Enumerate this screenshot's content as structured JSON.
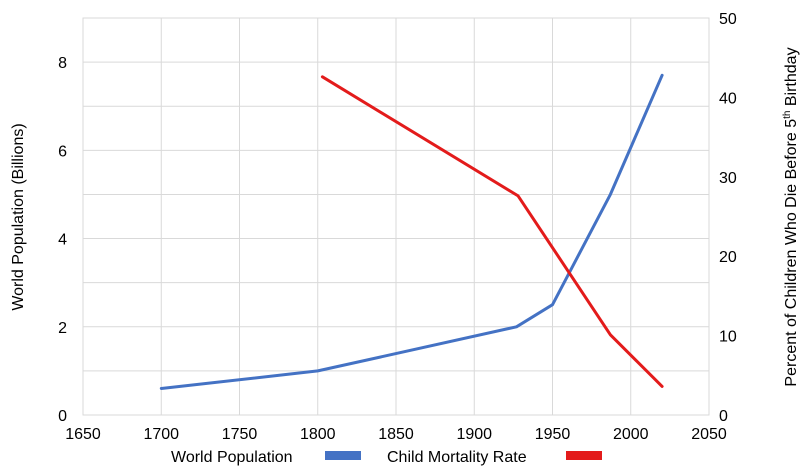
{
  "chart_data": {
    "type": "line",
    "x_axis": {
      "min": 1650,
      "max": 2050,
      "ticks": [
        "1650",
        "1700",
        "1750",
        "1800",
        "1850",
        "1900",
        "1950",
        "2000",
        "2050"
      ]
    },
    "y_left": {
      "label": "World Population (Billions)",
      "min": 0,
      "max": 9,
      "ticks": [
        "0",
        "2",
        "4",
        "6",
        "8"
      ]
    },
    "y_right": {
      "label_prefix": "Percent of Children Who Die Before 5",
      "label_sup": "th",
      "label_suffix": " Birthday",
      "min": 0,
      "max": 50,
      "ticks": [
        "0",
        "10",
        "20",
        "30",
        "40",
        "50"
      ]
    },
    "grid": true,
    "legend_position": "bottom",
    "series": [
      {
        "name": "World Population",
        "axis": "left",
        "color": "#4472C4",
        "points": [
          [
            1700,
            0.6
          ],
          [
            1800,
            1.0
          ],
          [
            1927,
            2.0
          ],
          [
            1950,
            2.5
          ],
          [
            1987,
            5.0
          ],
          [
            2020,
            7.7
          ]
        ]
      },
      {
        "name": "Child Mortality Rate",
        "axis": "right",
        "color": "#E31B1B",
        "points": [
          [
            1803,
            42.6
          ],
          [
            1928,
            27.6
          ],
          [
            1987,
            10.1
          ],
          [
            2020,
            3.6
          ]
        ]
      }
    ]
  }
}
